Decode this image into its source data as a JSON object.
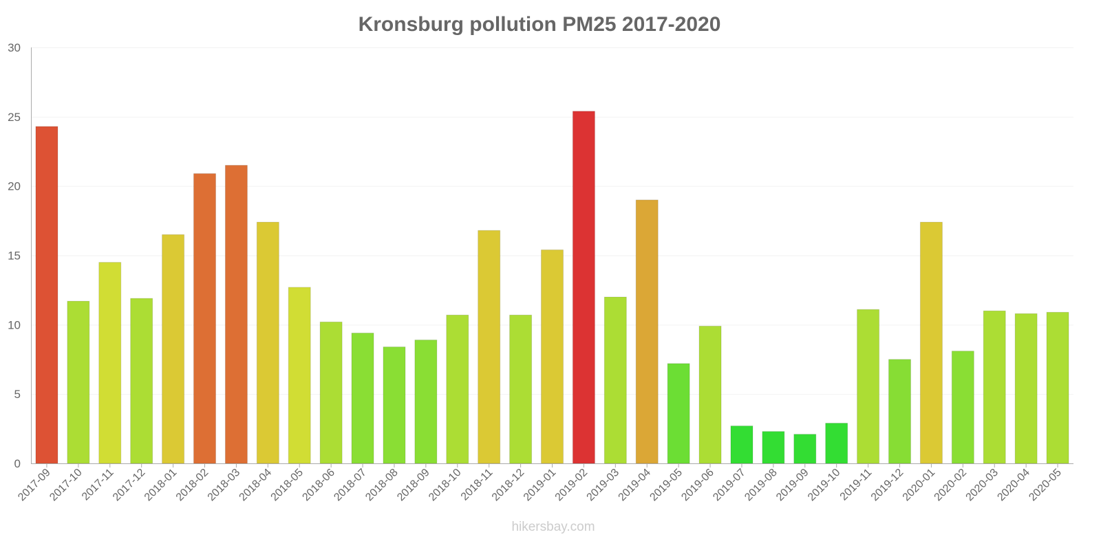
{
  "chart_data": {
    "type": "bar",
    "title": "Kronsburg pollution PM25 2017-2020",
    "xlabel": "",
    "ylabel": "",
    "ylim": [
      0,
      30
    ],
    "yticks": [
      "0",
      "5",
      "10",
      "15",
      "20",
      "25",
      "30"
    ],
    "grid": true,
    "categories": [
      "2017-09",
      "2017-10",
      "2017-11",
      "2017-12",
      "2018-01",
      "2018-02",
      "2018-03",
      "2018-04",
      "2018-05",
      "2018-06",
      "2018-07",
      "2018-08",
      "2018-09",
      "2018-10",
      "2018-11",
      "2018-12",
      "2019-01",
      "2019-02",
      "2019-03",
      "2019-04",
      "2019-05",
      "2019-06",
      "2019-07",
      "2019-08",
      "2019-09",
      "2019-10",
      "2019-11",
      "2019-12",
      "2020-01",
      "2020-02",
      "2020-03",
      "2020-04",
      "2020-05"
    ],
    "values": [
      24.3,
      11.7,
      14.5,
      11.9,
      16.5,
      20.9,
      21.5,
      17.4,
      12.7,
      10.2,
      9.4,
      8.4,
      8.9,
      10.7,
      16.8,
      10.7,
      15.4,
      25.4,
      12.0,
      19.0,
      7.2,
      9.9,
      2.7,
      2.3,
      2.1,
      2.9,
      11.1,
      7.5,
      17.4,
      8.1,
      11.0,
      10.8,
      10.9
    ],
    "colors": [
      "#dd5234",
      "#acdd34",
      "#d1dd34",
      "#acdd34",
      "#dbc934",
      "#dd6f34",
      "#dd6f34",
      "#dbc934",
      "#d1dd34",
      "#acdd34",
      "#8ade34",
      "#8ade34",
      "#8ade34",
      "#acdd34",
      "#dbc934",
      "#acdd34",
      "#dbc934",
      "#dc3333",
      "#acdd34",
      "#dba736",
      "#6cde34",
      "#acdd34",
      "#33dd33",
      "#33dd33",
      "#33dd33",
      "#33dd33",
      "#acdd34",
      "#87dd34",
      "#dbc934",
      "#8ade34",
      "#acdd34",
      "#acdd34",
      "#acdd34"
    ]
  },
  "watermark": "hikersbay.com"
}
